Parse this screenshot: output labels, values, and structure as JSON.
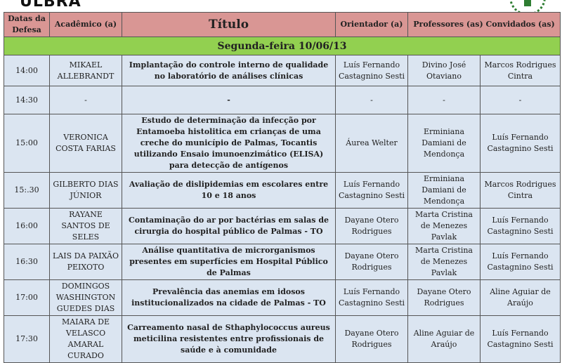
{
  "logo": "ULBRA",
  "headers": [
    "Datas da Defesa",
    "Acadêmico (a)",
    "Título",
    "Orientador (a)",
    "Professores (as) Convidados (as)"
  ],
  "day": "Segunda-feira 10/06/13",
  "colors": {
    "header": "#d99694",
    "day": "#92d050",
    "row": "#dbe5f1"
  },
  "rows": [
    {
      "time": "14:00",
      "student": "MIKAEL ALLEBRANDT",
      "title": "Implantação do controle interno de qualidade no laboratório de análises clínicas",
      "advisor": "Luís Fernando Castagnino Sesti",
      "guest1": "Divino José Otaviano",
      "guest2": "Marcos Rodrigues Cintra"
    },
    {
      "time": "14:30",
      "student": "-",
      "title": "-",
      "advisor": "-",
      "guest1": "-",
      "guest2": "-"
    },
    {
      "time": "15:00",
      "student": "VERONICA COSTA FARIAS",
      "title": "Estudo de determinação da infecção por Entamoeba histolitica em crianças de uma creche do município de Palmas, Tocantis utilizando Ensaio imunoenzimático (ELISA) para detecção de antígenos",
      "advisor": "Áurea Welter",
      "guest1": "Erminiana Damiani de Mendonça",
      "guest2": "Luís Fernando Castagnino Sesti"
    },
    {
      "time": "15:.30",
      "student": "GILBERTO DIAS JÚNIOR",
      "title": "Avaliação de dislipidemias em escolares entre 10 e 18 anos",
      "advisor": "Luís Fernando Castagnino Sesti",
      "guest1": "Erminiana Damiani de Mendonça",
      "guest2": "Marcos Rodrigues Cintra"
    },
    {
      "time": "16:00",
      "student": "RAYANE SANTOS DE SELES",
      "title": "Contaminação do ar por bactérias em salas de cirurgia do hospital público de Palmas - TO",
      "advisor": "Dayane Otero Rodrigues",
      "guest1": "Marta Cristina de Menezes Pavlak",
      "guest2": "Luís Fernando Castagnino Sesti"
    },
    {
      "time": "16:30",
      "student": "LAIS DA PAIXÃO PEIXOTO",
      "title": "Análise quantitativa de microrganismos presentes em superfícies em Hospital Público de Palmas",
      "advisor": "Dayane Otero Rodrigues",
      "guest1": "Marta Cristina de Menezes Pavlak",
      "guest2": "Luís Fernando Castagnino Sesti"
    },
    {
      "time": "17:00",
      "student": "DOMINGOS WASHINGTON GUEDES DIAS",
      "title": "Prevalência das anemias em idosos institucionalizados na cidade de Palmas - TO",
      "advisor": "Luís Fernando Castagnino Sesti",
      "guest1": "Dayane Otero Rodrigues",
      "guest2": "Aline Aguiar de Araújo"
    },
    {
      "time": "17:30",
      "student": "MAIARA DE VELASCO AMARAL CURADO",
      "title": "Carreamento nasal de Sthaphylococcus aureus meticilina resistentes entre profissionais de saúde e à comunidade",
      "advisor": "Dayane Otero Rodrigues",
      "guest1": "Aline Aguiar de Araújo",
      "guest2": "Luís Fernando Castagnino Sesti"
    }
  ]
}
